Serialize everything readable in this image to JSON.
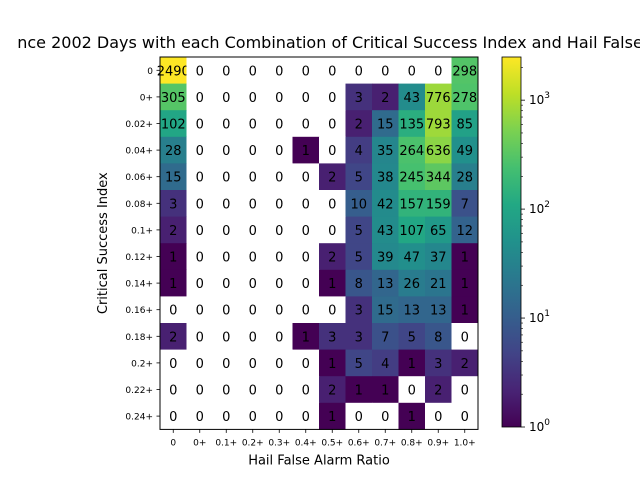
{
  "chart_data": {
    "type": "heatmap",
    "title": "nce 2002 Days with each Combination of Critical Success Index and Hail False",
    "xlabel": "Hail False Alarm Ratio",
    "ylabel": "Critical Success Index",
    "x_tick_labels": [
      "0",
      "0+",
      "0.1+",
      "0.2+",
      "0.3+",
      "0.4+",
      "0.5+",
      "0.6+",
      "0.7+",
      "0.8+",
      "0.9+",
      "1.0+"
    ],
    "y_tick_labels": [
      "0",
      "0+",
      "0.02+",
      "0.04+",
      "0.06+",
      "0.08+",
      "0.1+",
      "0.12+",
      "0.14+",
      "0.16+",
      "0.18+",
      "0.2+",
      "0.22+",
      "0.24+"
    ],
    "values": [
      [
        2490,
        0,
        0,
        0,
        0,
        0,
        0,
        0,
        0,
        0,
        0,
        298
      ],
      [
        305,
        0,
        0,
        0,
        0,
        0,
        0,
        3,
        2,
        43,
        776,
        278
      ],
      [
        102,
        0,
        0,
        0,
        0,
        0,
        0,
        2,
        15,
        135,
        793,
        85
      ],
      [
        28,
        0,
        0,
        0,
        0,
        1,
        0,
        4,
        35,
        264,
        636,
        49
      ],
      [
        15,
        0,
        0,
        0,
        0,
        0,
        2,
        5,
        38,
        245,
        344,
        28
      ],
      [
        3,
        0,
        0,
        0,
        0,
        0,
        0,
        10,
        42,
        157,
        159,
        7
      ],
      [
        2,
        0,
        0,
        0,
        0,
        0,
        0,
        5,
        43,
        107,
        65,
        12
      ],
      [
        1,
        0,
        0,
        0,
        0,
        0,
        2,
        5,
        39,
        47,
        37,
        1
      ],
      [
        1,
        0,
        0,
        0,
        0,
        0,
        1,
        8,
        13,
        26,
        21,
        1
      ],
      [
        0,
        0,
        0,
        0,
        0,
        0,
        0,
        3,
        15,
        13,
        13,
        1
      ],
      [
        2,
        0,
        0,
        0,
        0,
        1,
        3,
        3,
        7,
        5,
        8,
        0
      ],
      [
        0,
        0,
        0,
        0,
        0,
        0,
        1,
        5,
        4,
        1,
        3,
        2
      ],
      [
        0,
        0,
        0,
        0,
        0,
        0,
        2,
        1,
        1,
        0,
        2,
        0
      ],
      [
        0,
        0,
        0,
        0,
        0,
        0,
        1,
        0,
        0,
        1,
        0,
        0
      ]
    ],
    "color_scale": "log",
    "colormap": "viridis",
    "vmin": 1,
    "vmax": 2490,
    "zero_color": "#ffffff",
    "colorbar_ticks": [
      {
        "value": 1,
        "label": "10",
        "exp": "0"
      },
      {
        "value": 10,
        "label": "10",
        "exp": "1"
      },
      {
        "value": 100,
        "label": "10",
        "exp": "2"
      },
      {
        "value": 1000,
        "label": "10",
        "exp": "3"
      }
    ]
  }
}
